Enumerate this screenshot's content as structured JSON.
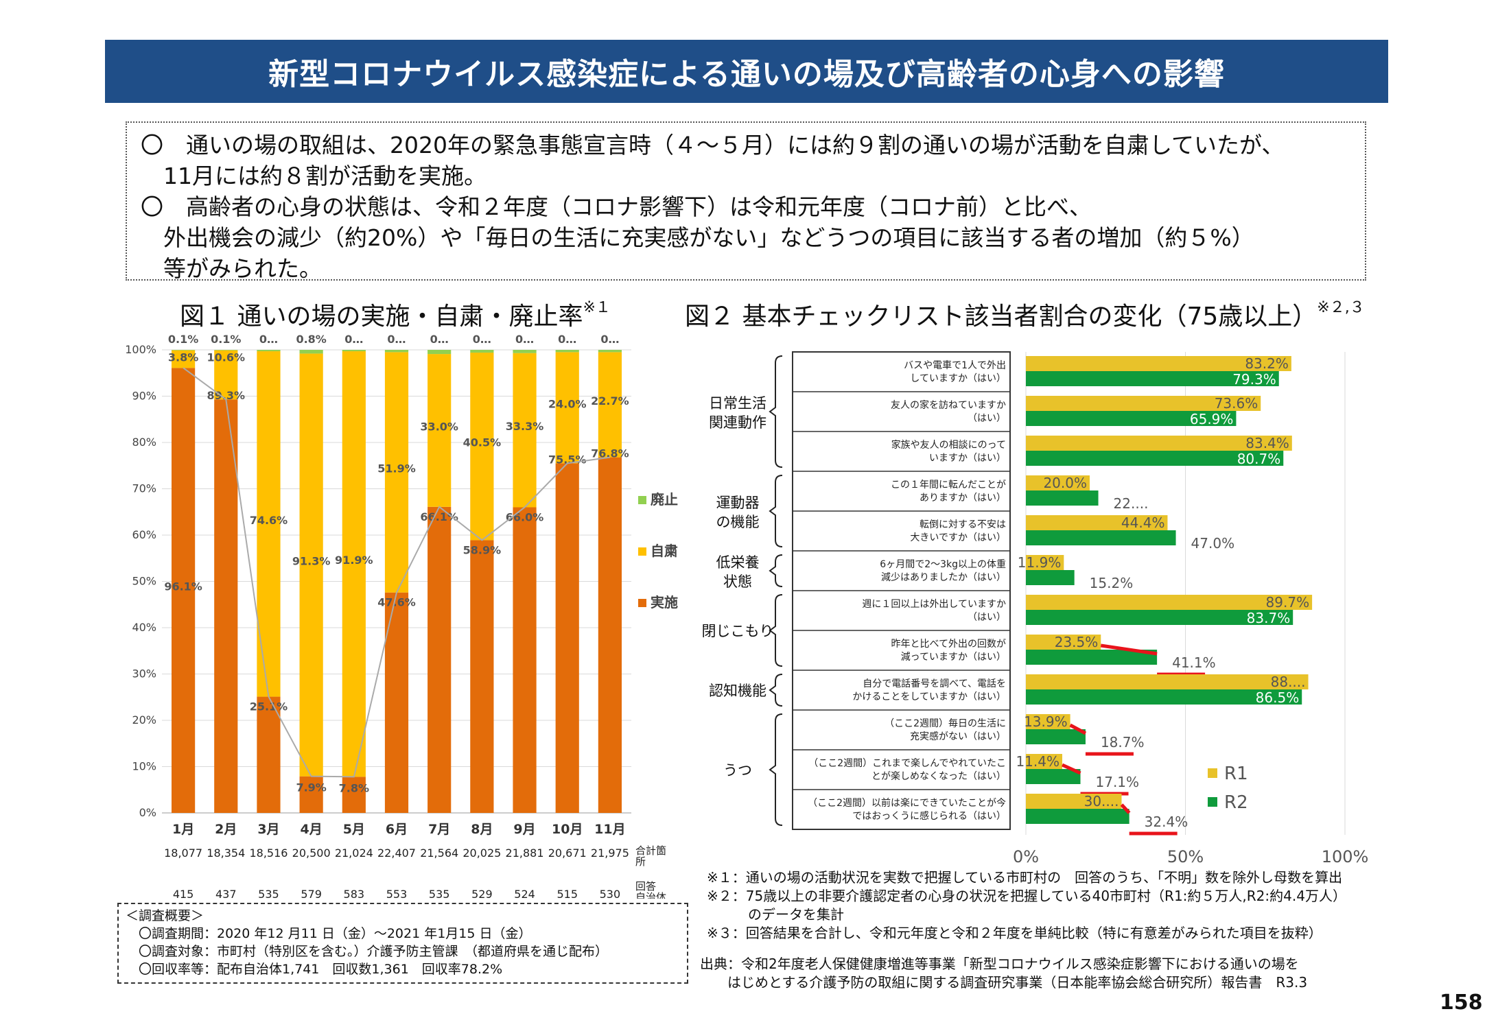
{
  "header": {
    "title": "新型コロナウイルス感染症による通いの場及び高齢者の心身への影響"
  },
  "summary": {
    "lines": [
      "〇　通いの場の取組は、2020年の緊急事態宣言時（４～５月）には約９割の通いの場が活動を自粛していたが、",
      "　11月には約８割が活動を実施。",
      "〇　高齢者の心身の状態は、令和２年度（コロナ影響下）は令和元年度（コロナ前）と比べ、",
      "　外出機会の減少（約20%）や「毎日の生活に充実感がない」などうつの項目に該当する者の増加（約５%）",
      "　等がみられた。"
    ]
  },
  "fig1": {
    "title": "図１ 通いの場の実施・自粛・廃止率",
    "title_note": "※１",
    "row_label_total": "合計箇所",
    "row_label_resp": "回答自治体数",
    "totals": [
      "18,077",
      "18,354",
      "18,516",
      "20,500",
      "21,024",
      "22,407",
      "21,564",
      "20,025",
      "21,881",
      "20,671",
      "21,975"
    ],
    "respondents": [
      "415",
      "437",
      "535",
      "579",
      "583",
      "553",
      "535",
      "529",
      "524",
      "515",
      "530"
    ]
  },
  "fig2": {
    "title": "図２ 基本チェックリスト該当者割合の変化（75歳以上）",
    "title_note": "※２,３"
  },
  "chart_data": [
    {
      "type": "bar",
      "stacked": true,
      "categories": [
        "1月",
        "2月",
        "3月",
        "4月",
        "5月",
        "6月",
        "7月",
        "8月",
        "9月",
        "10月",
        "11月"
      ],
      "series": [
        {
          "name": "実施",
          "color": "#e36c0a",
          "values": [
            96.1,
            89.3,
            25.1,
            7.9,
            7.8,
            47.6,
            66.1,
            58.9,
            66.0,
            75.5,
            76.8
          ],
          "labels": [
            "96.1%",
            "89.3%",
            "25.1%",
            "7.9%",
            "7.8%",
            "47.6%",
            "66.1%",
            "58.9%",
            "66.0%",
            "75.5%",
            "76.8%"
          ]
        },
        {
          "name": "自粛",
          "color": "#ffc000",
          "values": [
            3.8,
            10.6,
            74.6,
            91.3,
            91.9,
            51.9,
            33.0,
            40.5,
            33.3,
            24.0,
            22.7
          ],
          "labels": [
            "3.8%",
            "10.6%",
            "74.6%",
            "91.3%",
            "91.9%",
            "51.9%",
            "33.0%",
            "40.5%",
            "33.3%",
            "24.0%",
            "22.7%"
          ]
        },
        {
          "name": "廃止",
          "color": "#92d050",
          "values": [
            0.1,
            0.1,
            0.3,
            0.8,
            0.3,
            0.5,
            0.9,
            0.6,
            0.7,
            0.5,
            0.5
          ],
          "labels": [
            "0.1%",
            "0.1%",
            "0…",
            "0.8%",
            "0…",
            "0…",
            "0…",
            "0…",
            "0…",
            "0…",
            "0…"
          ]
        }
      ],
      "ylim": [
        0,
        100
      ],
      "yticks": [
        "0%",
        "10%",
        "20%",
        "30%",
        "40%",
        "50%",
        "60%",
        "70%",
        "80%",
        "90%",
        "100%"
      ],
      "legend": "right"
    },
    {
      "type": "bar",
      "orientation": "horizontal",
      "series": [
        {
          "name": "R1",
          "color": "#e8c22a"
        },
        {
          "name": "R2",
          "color": "#0f9b3c"
        }
      ],
      "groups": [
        {
          "name": "日常生活\n関連動作",
          "rows": [
            0,
            1,
            2
          ]
        },
        {
          "name": "運動器\nの機能",
          "rows": [
            3,
            4
          ]
        },
        {
          "name": "低栄養\n状態",
          "rows": [
            5
          ]
        },
        {
          "name": "閉じこもり",
          "rows": [
            6,
            7
          ]
        },
        {
          "name": "認知機能",
          "rows": [
            8
          ]
        },
        {
          "name": "うつ",
          "rows": [
            9,
            10,
            11
          ]
        }
      ],
      "rows": [
        {
          "label": [
            "バスや電車で1人で外出",
            "していますか（はい）"
          ],
          "r1": 83.2,
          "r2": 79.3,
          "r1_label": "83.2%",
          "r2_label": "79.3%"
        },
        {
          "label": [
            "友人の家を訪ねていますか",
            "（はい）"
          ],
          "r1": 73.6,
          "r2": 65.9,
          "r1_label": "73.6%",
          "r2_label": "65.9%"
        },
        {
          "label": [
            "家族や友人の相談にのって",
            "いますか（はい）"
          ],
          "r1": 83.4,
          "r2": 80.7,
          "r1_label": "83.4%",
          "r2_label": "80.7%"
        },
        {
          "label": [
            "この１年間に転んだことが",
            "ありますか（はい）"
          ],
          "r1": 20.0,
          "r2": 22.7,
          "r1_label": "20.0%",
          "r2_label": "22...."
        },
        {
          "label": [
            "転倒に対する不安は",
            "大きいですか（はい）"
          ],
          "r1": 44.4,
          "r2": 47.0,
          "r1_label": "44.4%",
          "r2_label": "47.0%"
        },
        {
          "label": [
            "6ヶ月間で2～3kg以上の体重",
            "減少はありましたか（はい）"
          ],
          "r1": 11.9,
          "r2": 15.2,
          "r1_label": "11.9%",
          "r2_label": "15.2%"
        },
        {
          "label": [
            "週に１回以上は外出していますか",
            "（はい）"
          ],
          "r1": 89.7,
          "r2": 83.7,
          "r1_label": "89.7%",
          "r2_label": "83.7%"
        },
        {
          "label": [
            "昨年と比べて外出の回数が",
            "減っていますか（はい）"
          ],
          "r1": 23.5,
          "r2": 41.1,
          "r1_label": "23.5%",
          "r2_label": "41.1%",
          "highlight": true
        },
        {
          "label": [
            "自分で電話番号を調べて、電話を",
            "かけることをしていますか（はい）"
          ],
          "r1": 88.5,
          "r2": 86.5,
          "r1_label": "88....",
          "r2_label": "86.5%"
        },
        {
          "label": [
            "（ここ2週間）毎日の生活に",
            "充実感がない（はい）"
          ],
          "r1": 13.9,
          "r2": 18.7,
          "r1_label": "13.9%",
          "r2_label": "18.7%",
          "highlight": true
        },
        {
          "label": [
            "（ここ2週間）これまで楽しんでやれていたこ",
            "とが楽しめなくなった（はい）"
          ],
          "r1": 11.4,
          "r2": 17.1,
          "r1_label": "11.4%",
          "r2_label": "17.1%",
          "highlight": true
        },
        {
          "label": [
            "（ここ2週間）以前は楽にできていたことが今",
            "ではおっくうに感じられる（はい）"
          ],
          "r1": 30.0,
          "r2": 32.4,
          "r1_label": "30....",
          "r2_label": "32.4%",
          "highlight": true
        }
      ],
      "xlim": [
        0,
        100
      ],
      "xticks": [
        "0%",
        "50%",
        "100%"
      ],
      "legend": "bottom-right"
    }
  ],
  "survey": {
    "lines": [
      "＜調査概要＞",
      "　〇調査期間：2020 年12 月11 日（金）～2021 年1月15 日（金）",
      "　〇調査対象：市町村（特別区を含む。）介護予防主管課　（都道府県を通じ配布）",
      "　〇回収率等：配布自治体1,741　回収数1,361　回収率78.2%"
    ]
  },
  "notes": {
    "lines": [
      "※１：通いの場の活動状況を実数で把握している市町村の　回答のうち、「不明」数を除外し母数を算出",
      "※２：75歳以上の非要介護認定者の心身の状況を把握している40市町村（R1:約５万人,R2:約4.4万人）",
      "　　　のデータを集計",
      "※３：回答結果を合計し、令和元年度と令和２年度を単純比較（特に有意差がみられた項目を抜粋）"
    ]
  },
  "source": {
    "lines": [
      "出典：令和2年度老人保健健康増進等事業「新型コロナウイルス感染症影響下における通いの場を",
      "　　はじめとする介護予防の取組に関する調査研究事業（日本能率協会総合研究所）報告書　R3.3"
    ]
  },
  "page": {
    "number": "158"
  }
}
